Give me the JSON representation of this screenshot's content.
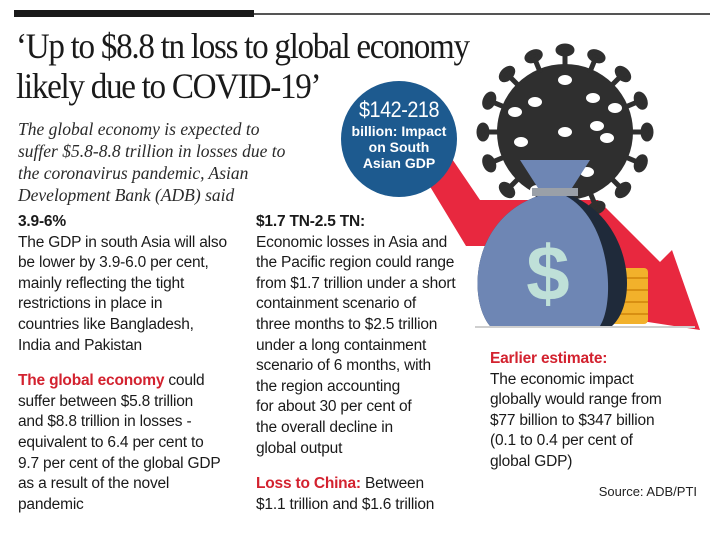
{
  "title_lines": [
    "‘Up to $8.8 tn loss to global economy",
    "likely due to COVID-19’"
  ],
  "subtitle_lines": [
    "The global economy is expected to",
    "suffer $5.8-8.8 trillion in losses due to",
    "the coronavirus pandemic, Asian",
    "Development Bank (ADB) said"
  ],
  "badge": {
    "value": "$142-218",
    "lines": [
      "billion: Impact",
      "on South",
      "Asian GDP"
    ]
  },
  "col1": {
    "heading": "3.9-6%",
    "para1": [
      "The GDP in south Asia will also",
      "be lower by 3.9-6.0 per cent,",
      "mainly reflecting the tight",
      "restrictions in place in",
      "countries like Bangladesh,",
      "India and Pakistan"
    ],
    "para2_label": "The global economy",
    "para2_first_rest": " could",
    "para2": [
      "suffer between $5.8 trillion",
      "and $8.8 trillion in losses -",
      "equivalent to 6.4 per cent to",
      "9.7 per cent of the global GDP",
      "as a result of the novel",
      "pandemic"
    ]
  },
  "col2": {
    "heading": "$1.7 TN-2.5 TN:",
    "para1": [
      "Economic losses in Asia and",
      "the Pacific region could range",
      "from $1.7 trillion under a short",
      "containment scenario of",
      "three months to $2.5 trillion",
      "under a long containment",
      "scenario of 6 months, with",
      "the region accounting",
      "for about 30 per cent of",
      "the overall decline in",
      "global output"
    ],
    "china_label": "Loss to China:",
    "china_first_rest": " Between",
    "china": [
      "$1.1 trillion and $1.6 trillion"
    ]
  },
  "col3": {
    "heading": "Earlier estimate:",
    "para": [
      "The economic impact",
      "globally would range from",
      "$77 billion to $347 billion",
      "(0.1 to 0.4 per cent of",
      "global GDP)"
    ]
  },
  "source": "Source: ADB/PTI",
  "colors": {
    "accent_red": "#d3222f",
    "badge_blue": "#1d5a8f",
    "arrow_red": "#e8283f",
    "bag_blue": "#6e86b4"
  }
}
